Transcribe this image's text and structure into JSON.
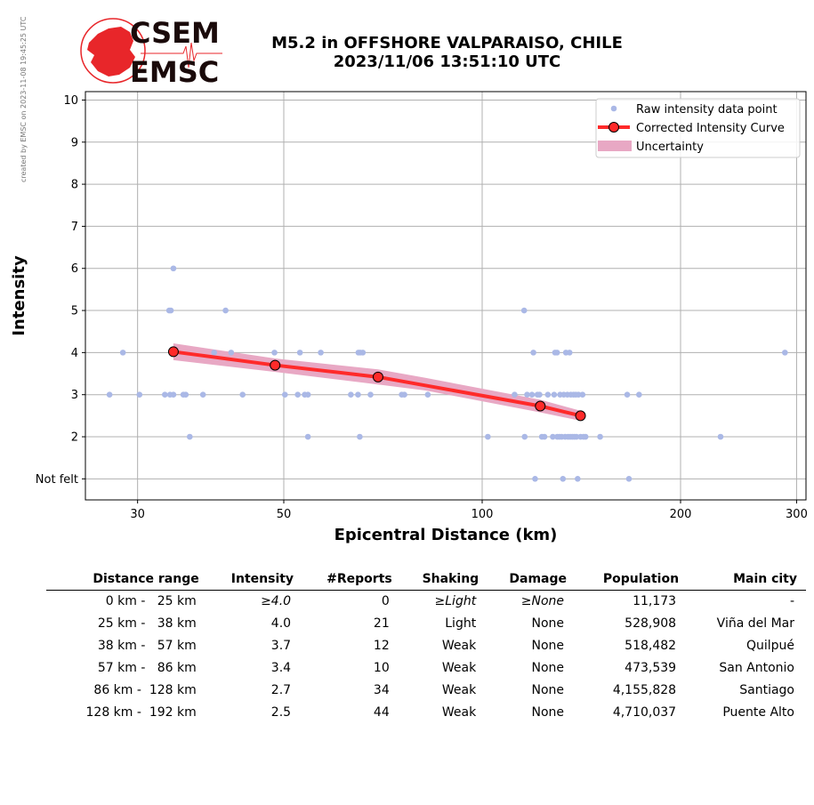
{
  "credit": "created by EMSC on 2023-11-08 19:45:25 UTC",
  "logo": {
    "line1": "CSEM",
    "line2": "EMSC",
    "color": "#e8262a"
  },
  "title": {
    "line1": "M5.2 in OFFSHORE VALPARAISO, CHILE",
    "line2": "2023/11/06 13:51:10 UTC"
  },
  "chart_data": {
    "type": "scatter",
    "xlabel": "Epicentral Distance (km)",
    "ylabel": "Intensity",
    "xscale": "log",
    "xlim": [
      25,
      310
    ],
    "ylim": [
      0.5,
      10.2
    ],
    "xticks": [
      30,
      50,
      100,
      200,
      300
    ],
    "xtick_labels": [
      "30",
      "50",
      "100",
      "200",
      "300"
    ],
    "yticks": [
      1,
      2,
      3,
      4,
      5,
      6,
      7,
      8,
      9,
      10
    ],
    "ytick_labels": [
      "Not felt",
      "2",
      "3",
      "4",
      "5",
      "6",
      "7",
      "8",
      "9",
      "10"
    ],
    "grid": true,
    "legend_position": "top-right",
    "legend": [
      "Raw intensity data point",
      "Corrected Intensity Curve",
      "Uncertainty"
    ],
    "colors": {
      "raw": "#aab8e6",
      "curve": "#ff2a2a",
      "uncertainty": "#e8a8c4"
    },
    "series": [
      {
        "name": "Raw intensity data point",
        "points": [
          [
            28.5,
            4
          ],
          [
            27.2,
            3
          ],
          [
            30.2,
            3
          ],
          [
            34.0,
            6
          ],
          [
            33.5,
            5
          ],
          [
            33.7,
            5
          ],
          [
            33.0,
            3
          ],
          [
            33.6,
            3
          ],
          [
            34.0,
            3
          ],
          [
            35.2,
            3
          ],
          [
            35.5,
            3
          ],
          [
            36.0,
            2
          ],
          [
            37.7,
            3
          ],
          [
            39.2,
            4
          ],
          [
            40.8,
            5
          ],
          [
            41.6,
            4
          ],
          [
            43.3,
            3
          ],
          [
            48.4,
            4
          ],
          [
            50.2,
            3
          ],
          [
            52.5,
            3
          ],
          [
            52.9,
            4
          ],
          [
            53.8,
            3
          ],
          [
            54.4,
            3
          ],
          [
            54.4,
            2
          ],
          [
            56.9,
            4
          ],
          [
            63.2,
            3
          ],
          [
            64.8,
            3
          ],
          [
            64.9,
            4
          ],
          [
            65.3,
            4
          ],
          [
            65.9,
            4
          ],
          [
            65.2,
            2
          ],
          [
            67.7,
            3
          ],
          [
            75.5,
            3
          ],
          [
            76.2,
            3
          ],
          [
            82.7,
            3
          ],
          [
            102.0,
            2
          ],
          [
            112.0,
            3
          ],
          [
            115.8,
            5
          ],
          [
            116.0,
            2
          ],
          [
            117.0,
            3
          ],
          [
            119.0,
            3
          ],
          [
            119.6,
            4
          ],
          [
            120.3,
            1
          ],
          [
            121.3,
            3
          ],
          [
            122.2,
            3
          ],
          [
            123.2,
            2
          ],
          [
            124.3,
            2
          ],
          [
            125.8,
            3
          ],
          [
            128.0,
            2
          ],
          [
            128.6,
            3
          ],
          [
            129.0,
            4
          ],
          [
            129.9,
            4
          ],
          [
            130.0,
            2
          ],
          [
            131.0,
            2
          ],
          [
            131.3,
            3
          ],
          [
            132.0,
            2
          ],
          [
            132.6,
            1
          ],
          [
            133.0,
            3
          ],
          [
            133.6,
            2
          ],
          [
            134.0,
            4
          ],
          [
            134.7,
            3
          ],
          [
            135.0,
            2
          ],
          [
            135.7,
            4
          ],
          [
            136.0,
            2
          ],
          [
            136.3,
            3
          ],
          [
            137.0,
            2
          ],
          [
            137.6,
            3
          ],
          [
            138.0,
            2
          ],
          [
            138.7,
            3
          ],
          [
            139.6,
            1
          ],
          [
            139.0,
            2
          ],
          [
            140.0,
            3
          ],
          [
            141.0,
            2
          ],
          [
            142.0,
            3
          ],
          [
            142.5,
            2
          ],
          [
            143.5,
            2
          ],
          [
            151.0,
            2
          ],
          [
            166.0,
            3
          ],
          [
            167.0,
            1
          ],
          [
            173.0,
            3
          ],
          [
            230.0,
            2
          ],
          [
            288.0,
            4
          ]
        ]
      },
      {
        "name": "Corrected Intensity Curve",
        "points": [
          [
            34.0,
            4.02
          ],
          [
            48.5,
            3.7
          ],
          [
            69.5,
            3.42
          ],
          [
            122.5,
            2.73
          ],
          [
            141.0,
            2.5
          ]
        ]
      },
      {
        "name": "Uncertainty",
        "upper": [
          [
            34.0,
            4.22
          ],
          [
            48.5,
            3.86
          ],
          [
            69.5,
            3.6
          ],
          [
            82.0,
            3.4
          ],
          [
            122.5,
            2.88
          ],
          [
            141.0,
            2.62
          ]
        ],
        "lower": [
          [
            34.0,
            3.82
          ],
          [
            48.5,
            3.54
          ],
          [
            69.5,
            3.24
          ],
          [
            82.0,
            3.1
          ],
          [
            122.5,
            2.58
          ],
          [
            141.0,
            2.38
          ]
        ]
      }
    ]
  },
  "table": {
    "headers": [
      "Distance range",
      "Intensity",
      "#Reports",
      "Shaking",
      "Damage",
      "Population",
      "Main city"
    ],
    "rows": [
      [
        "0 km -   25 km",
        "≥4.0",
        "0",
        "≥Light",
        "≥None",
        "11,173",
        "-"
      ],
      [
        "25 km -   38 km",
        "4.0",
        "21",
        "Light",
        "None",
        "528,908",
        "Viña del Mar"
      ],
      [
        "38 km -   57 km",
        "3.7",
        "12",
        "Weak",
        "None",
        "518,482",
        "Quilpué"
      ],
      [
        "57 km -   86 km",
        "3.4",
        "10",
        "Weak",
        "None",
        "473,539",
        "San Antonio"
      ],
      [
        "86 km -  128 km",
        "2.7",
        "34",
        "Weak",
        "None",
        "4,155,828",
        "Santiago"
      ],
      [
        "128 km -  192 km",
        "2.5",
        "44",
        "Weak",
        "None",
        "4,710,037",
        "Puente Alto"
      ]
    ]
  }
}
